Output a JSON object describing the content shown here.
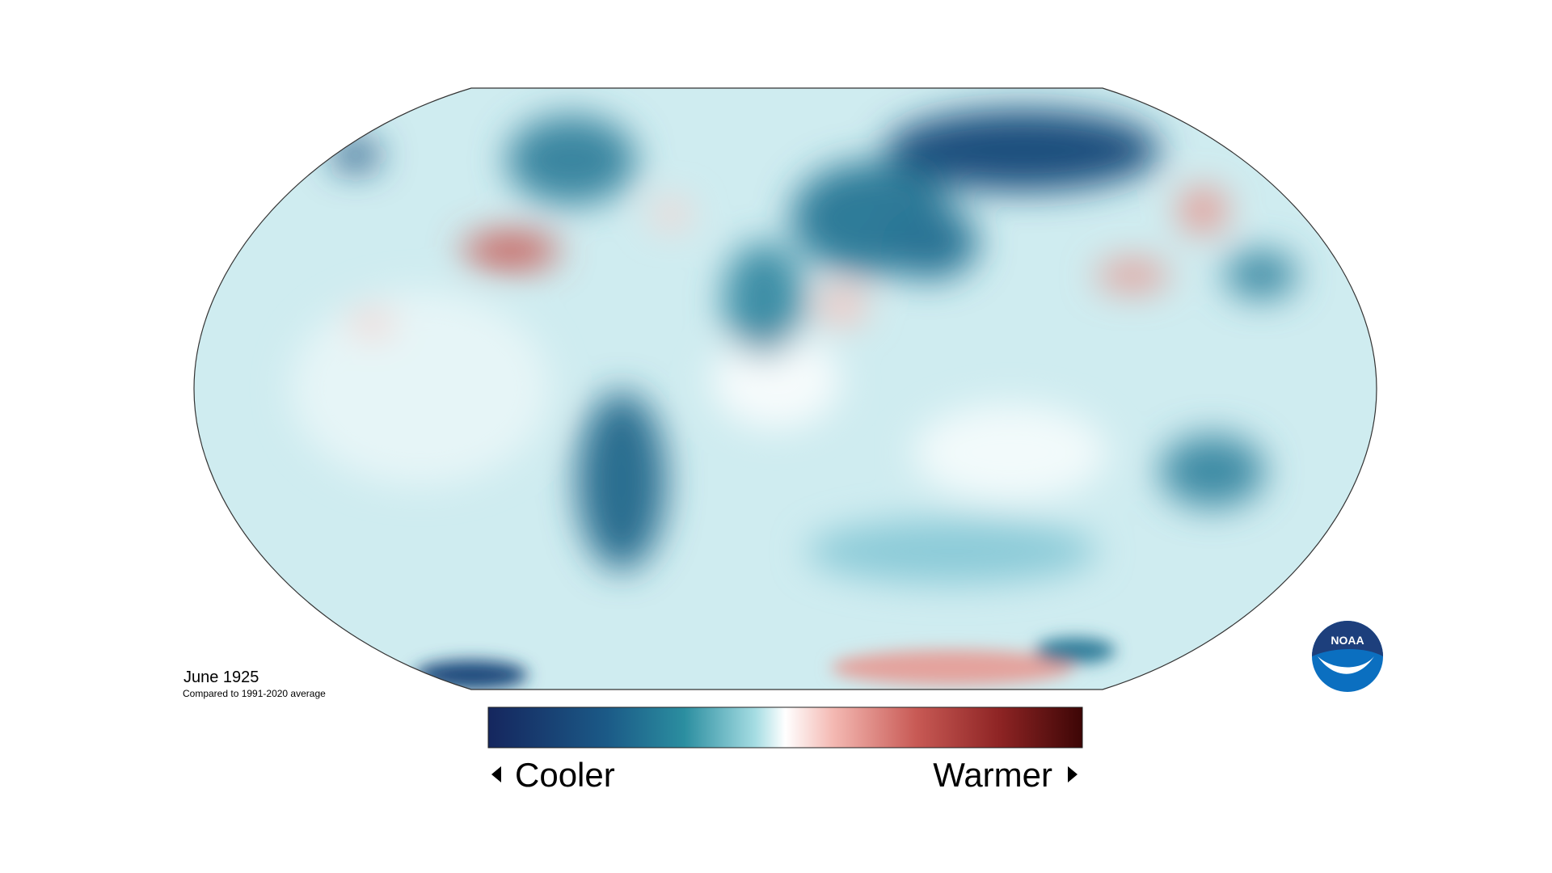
{
  "title": "June 1925",
  "subtitle": "Compared to 1991-2020 average",
  "legend": {
    "low_label": "Cooler",
    "high_label": "Warmer"
  },
  "logo": "NOAA"
}
